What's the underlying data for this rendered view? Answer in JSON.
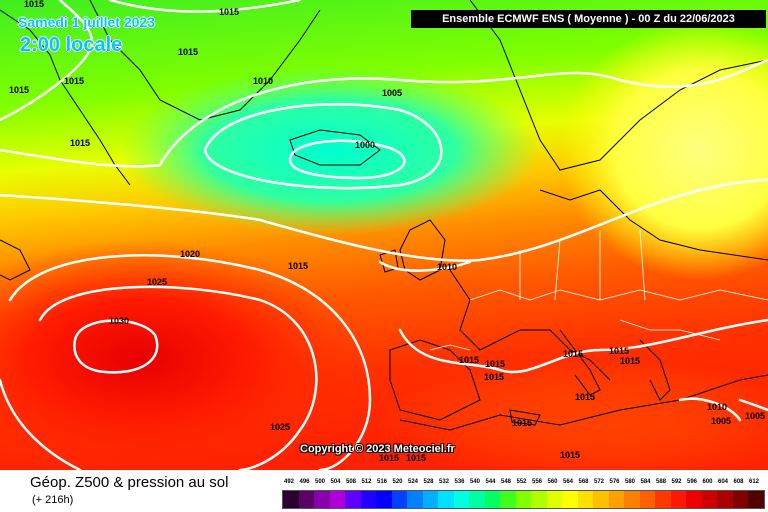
{
  "header": {
    "date_label": "Samedi 1 juillet 2023",
    "time_label": "2:00 locale",
    "model_label": "Ensemble ECMWF ENS  ( Moyenne )  -  00 Z du 22/06/2023"
  },
  "copyright": "Copyright © 2023 Meteociel.fr",
  "footer": {
    "product_title": "Géop. Z500 & pression au sol",
    "forecast_hour": "(+ 216h)"
  },
  "legend": {
    "ticks": [
      "492",
      "496",
      "500",
      "504",
      "508",
      "512",
      "516",
      "520",
      "524",
      "528",
      "532",
      "536",
      "540",
      "544",
      "548",
      "552",
      "556",
      "560",
      "564",
      "568",
      "572",
      "576",
      "580",
      "584",
      "588",
      "592",
      "596",
      "600",
      "604",
      "608",
      "612"
    ],
    "colors": [
      "#2a0030",
      "#5a0066",
      "#8a00aa",
      "#b000d8",
      "#6000ff",
      "#2000ff",
      "#0000ff",
      "#0040ff",
      "#0080ff",
      "#00b0ff",
      "#00e0ff",
      "#00ffe0",
      "#00ffa0",
      "#00ff60",
      "#40ff20",
      "#80ff00",
      "#b0ff00",
      "#e0ff00",
      "#ffff00",
      "#ffe000",
      "#ffc000",
      "#ffa000",
      "#ff8000",
      "#ff6000",
      "#ff3800",
      "#ff1800",
      "#ee0000",
      "#cc0000",
      "#aa0000",
      "#800000",
      "#500000"
    ]
  },
  "isobars": [
    {
      "value": "1015"
    },
    {
      "value": "1015"
    },
    {
      "value": "1015"
    },
    {
      "value": "1015"
    },
    {
      "value": "1015"
    },
    {
      "value": "1010"
    },
    {
      "value": "1005"
    },
    {
      "value": "1000"
    },
    {
      "value": "1015"
    },
    {
      "value": "1020"
    },
    {
      "value": "1025"
    },
    {
      "value": "1030"
    },
    {
      "value": "1015"
    },
    {
      "value": "1010"
    },
    {
      "value": "1015"
    },
    {
      "value": "1015"
    },
    {
      "value": "1015"
    },
    {
      "value": "1015"
    },
    {
      "value": "1015"
    },
    {
      "value": "1015"
    },
    {
      "value": "1015"
    },
    {
      "value": "1015"
    },
    {
      "value": "1025"
    },
    {
      "value": "1015"
    },
    {
      "value": "1010"
    },
    {
      "value": "1005"
    },
    {
      "value": "1005"
    },
    {
      "value": "1015"
    },
    {
      "value": "1015"
    }
  ]
}
